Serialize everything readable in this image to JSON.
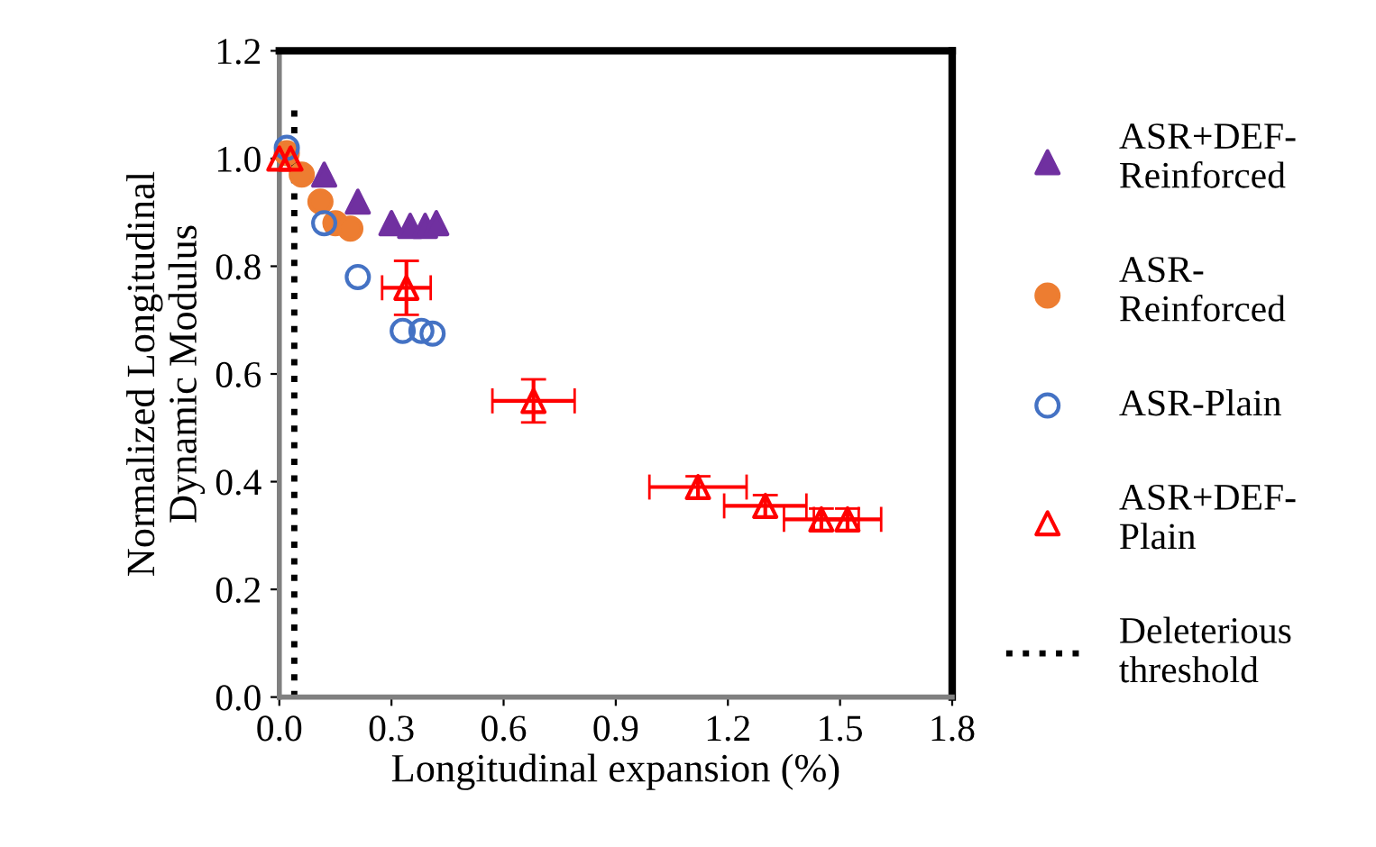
{
  "chart_data": {
    "type": "scatter",
    "xlabel": "Longitudinal expansion (%)",
    "ylabel": "Normalized Longitudinal\nDynamic Modulus",
    "xlim": [
      0,
      1.8
    ],
    "xticks": [
      {
        "value": 0,
        "label": "0.0"
      },
      0.3,
      0.6,
      0.9,
      1.2,
      1.5,
      1.8
    ],
    "ylim": [
      0,
      1.2
    ],
    "yticks": [
      {
        "value": 0,
        "label": "0.0"
      },
      0.2,
      0.4,
      0.6,
      0.8,
      {
        "value": 1,
        "label": "1.0"
      },
      1.2
    ],
    "grid": false,
    "legend": "right",
    "series": [
      {
        "name": "ASR+DEF-\nReinforced",
        "color": "#7030a0",
        "marker": "triangle",
        "x": [
          0.12,
          0.21,
          0.3,
          0.35,
          0.39,
          0.42
        ],
        "values": [
          0.97,
          0.92,
          0.88,
          0.875,
          0.875,
          0.88
        ]
      },
      {
        "name": "ASR-\nReinforced",
        "color": "#ed7d31",
        "marker": "circle",
        "x": [
          0.02,
          0.06,
          0.11,
          0.15,
          0.19
        ],
        "values": [
          1.01,
          0.97,
          0.92,
          0.88,
          0.87
        ]
      },
      {
        "name": "ASR-Plain",
        "color": "#4472c4",
        "marker": "circle",
        "x": [
          0.02,
          0.12,
          0.21,
          0.33,
          0.38,
          0.41
        ],
        "values": [
          1.02,
          0.88,
          0.78,
          0.68,
          0.68,
          0.675
        ]
      },
      {
        "name": "ASR+DEF-\nPlain",
        "color": "#ff0000",
        "marker": "triangle",
        "x": [
          0,
          0.03,
          0.34,
          0.68,
          1.12,
          1.3,
          1.45,
          1.52
        ],
        "values": [
          1.0,
          1.0,
          0.76,
          0.55,
          0.39,
          0.355,
          0.33,
          0.33
        ],
        "errors": [
          null,
          null,
          0.05,
          0.04,
          0.02,
          0.02,
          0.02,
          0.02
        ],
        "xerrors": [
          null,
          null,
          0.065,
          0.11,
          0.13,
          0.11,
          0.1,
          0.09
        ]
      },
      {
        "name": "Deleterious\nthreshold",
        "type": "line",
        "color": "#000000",
        "marker": "none",
        "line_style": "dotted",
        "x": [
          0.04,
          0.04
        ],
        "values": [
          0,
          1.1
        ]
      }
    ]
  }
}
